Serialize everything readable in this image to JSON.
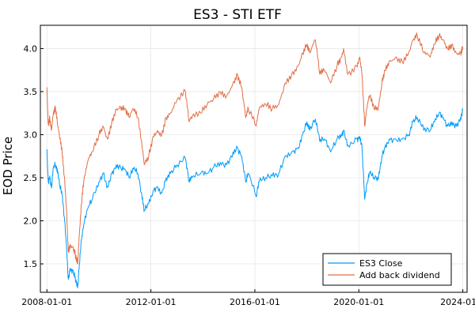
{
  "chart_data": {
    "type": "line",
    "title": "ES3 - STI ETF",
    "xlabel": "",
    "ylabel": "EOD Price",
    "x_ticks": [
      "2008-01-01",
      "2012-01-01",
      "2016-01-01",
      "2020-01-01",
      "2024-01-0"
    ],
    "y_ticks": [
      "1.5",
      "2.0",
      "2.5",
      "3.0",
      "3.5",
      "4.0"
    ],
    "xlim": [
      "2007-10-01",
      "2024-03-01"
    ],
    "ylim": [
      1.17,
      4.27
    ],
    "grid": true,
    "legend_position": "bottom-right",
    "series": [
      {
        "name": "ES3 Close",
        "color": "#009af9",
        "points": [
          [
            "2008-01-01",
            2.83
          ],
          [
            "2008-01-20",
            2.45
          ],
          [
            "2008-02-10",
            2.52
          ],
          [
            "2008-03-05",
            2.38
          ],
          [
            "2008-04-01",
            2.62
          ],
          [
            "2008-05-01",
            2.65
          ],
          [
            "2008-06-01",
            2.55
          ],
          [
            "2008-07-01",
            2.4
          ],
          [
            "2008-08-01",
            2.3
          ],
          [
            "2008-09-01",
            2.05
          ],
          [
            "2008-10-01",
            1.72
          ],
          [
            "2008-10-28",
            1.32
          ],
          [
            "2008-11-20",
            1.45
          ],
          [
            "2009-01-01",
            1.42
          ],
          [
            "2009-02-01",
            1.35
          ],
          [
            "2009-03-09",
            1.22
          ],
          [
            "2009-04-01",
            1.5
          ],
          [
            "2009-05-01",
            1.78
          ],
          [
            "2009-06-01",
            1.95
          ],
          [
            "2009-08-01",
            2.15
          ],
          [
            "2009-10-01",
            2.25
          ],
          [
            "2010-01-01",
            2.45
          ],
          [
            "2010-03-01",
            2.55
          ],
          [
            "2010-05-01",
            2.4
          ],
          [
            "2010-07-01",
            2.55
          ],
          [
            "2010-09-01",
            2.65
          ],
          [
            "2010-11-01",
            2.62
          ],
          [
            "2011-01-01",
            2.6
          ],
          [
            "2011-03-01",
            2.5
          ],
          [
            "2011-05-01",
            2.6
          ],
          [
            "2011-07-01",
            2.55
          ],
          [
            "2011-09-01",
            2.25
          ],
          [
            "2011-10-01",
            2.12
          ],
          [
            "2011-12-01",
            2.2
          ],
          [
            "2012-02-01",
            2.35
          ],
          [
            "2012-04-01",
            2.4
          ],
          [
            "2012-06-01",
            2.32
          ],
          [
            "2012-08-01",
            2.5
          ],
          [
            "2012-10-01",
            2.55
          ],
          [
            "2013-01-01",
            2.65
          ],
          [
            "2013-05-01",
            2.72
          ],
          [
            "2013-06-20",
            2.45
          ],
          [
            "2013-08-01",
            2.5
          ],
          [
            "2013-12-01",
            2.55
          ],
          [
            "2014-03-01",
            2.55
          ],
          [
            "2014-06-01",
            2.62
          ],
          [
            "2014-09-01",
            2.68
          ],
          [
            "2014-12-01",
            2.65
          ],
          [
            "2015-03-01",
            2.8
          ],
          [
            "2015-05-01",
            2.85
          ],
          [
            "2015-07-01",
            2.75
          ],
          [
            "2015-08-25",
            2.45
          ],
          [
            "2015-10-01",
            2.55
          ],
          [
            "2016-01-20",
            2.28
          ],
          [
            "2016-03-01",
            2.45
          ],
          [
            "2016-06-01",
            2.5
          ],
          [
            "2016-09-01",
            2.52
          ],
          [
            "2016-12-01",
            2.55
          ],
          [
            "2017-03-01",
            2.75
          ],
          [
            "2017-06-01",
            2.8
          ],
          [
            "2017-09-01",
            2.85
          ],
          [
            "2017-11-01",
            3.0
          ],
          [
            "2018-01-01",
            3.15
          ],
          [
            "2018-02-10",
            3.05
          ],
          [
            "2018-05-01",
            3.18
          ],
          [
            "2018-07-01",
            2.92
          ],
          [
            "2018-09-01",
            2.95
          ],
          [
            "2018-12-01",
            2.8
          ],
          [
            "2019-03-01",
            2.95
          ],
          [
            "2019-05-01",
            3.0
          ],
          [
            "2019-06-01",
            3.05
          ],
          [
            "2019-08-01",
            2.88
          ],
          [
            "2019-12-01",
            2.95
          ],
          [
            "2020-01-15",
            2.98
          ],
          [
            "2020-02-15",
            2.85
          ],
          [
            "2020-03-23",
            2.25
          ],
          [
            "2020-05-01",
            2.45
          ],
          [
            "2020-06-01",
            2.55
          ],
          [
            "2020-08-01",
            2.5
          ],
          [
            "2020-10-01",
            2.48
          ],
          [
            "2020-11-20",
            2.75
          ],
          [
            "2021-01-01",
            2.85
          ],
          [
            "2021-03-01",
            2.95
          ],
          [
            "2021-06-01",
            2.95
          ],
          [
            "2021-09-01",
            2.95
          ],
          [
            "2021-12-01",
            3.0
          ],
          [
            "2022-02-01",
            3.15
          ],
          [
            "2022-04-01",
            3.2
          ],
          [
            "2022-07-01",
            3.05
          ],
          [
            "2022-10-01",
            3.05
          ],
          [
            "2022-12-01",
            3.15
          ],
          [
            "2023-02-01",
            3.25
          ],
          [
            "2023-04-01",
            3.2
          ],
          [
            "2023-06-01",
            3.1
          ],
          [
            "2023-08-01",
            3.15
          ],
          [
            "2023-10-01",
            3.1
          ],
          [
            "2023-12-01",
            3.2
          ],
          [
            "2024-01-01",
            3.28
          ]
        ]
      },
      {
        "name": "Add back dividend",
        "color": "#e26f46",
        "points": [
          [
            "2008-01-01",
            3.55
          ],
          [
            "2008-01-20",
            3.12
          ],
          [
            "2008-02-10",
            3.2
          ],
          [
            "2008-03-05",
            3.05
          ],
          [
            "2008-04-01",
            3.25
          ],
          [
            "2008-05-01",
            3.3
          ],
          [
            "2008-06-01",
            3.1
          ],
          [
            "2008-07-01",
            2.95
          ],
          [
            "2008-08-01",
            2.8
          ],
          [
            "2008-09-01",
            2.52
          ],
          [
            "2008-10-01",
            2.15
          ],
          [
            "2008-10-28",
            1.65
          ],
          [
            "2008-11-20",
            1.72
          ],
          [
            "2009-01-01",
            1.7
          ],
          [
            "2009-02-01",
            1.62
          ],
          [
            "2009-03-09",
            1.5
          ],
          [
            "2009-04-01",
            1.85
          ],
          [
            "2009-05-01",
            2.2
          ],
          [
            "2009-06-01",
            2.45
          ],
          [
            "2009-08-01",
            2.7
          ],
          [
            "2009-10-01",
            2.8
          ],
          [
            "2010-01-01",
            3.0
          ],
          [
            "2010-03-01",
            3.1
          ],
          [
            "2010-05-01",
            2.95
          ],
          [
            "2010-07-01",
            3.15
          ],
          [
            "2010-09-01",
            3.3
          ],
          [
            "2010-11-01",
            3.32
          ],
          [
            "2011-01-01",
            3.3
          ],
          [
            "2011-03-01",
            3.2
          ],
          [
            "2011-05-01",
            3.3
          ],
          [
            "2011-07-01",
            3.2
          ],
          [
            "2011-09-01",
            2.85
          ],
          [
            "2011-10-01",
            2.65
          ],
          [
            "2011-12-01",
            2.75
          ],
          [
            "2012-02-01",
            2.98
          ],
          [
            "2012-04-01",
            3.05
          ],
          [
            "2012-06-01",
            3.0
          ],
          [
            "2012-08-01",
            3.2
          ],
          [
            "2012-10-01",
            3.25
          ],
          [
            "2013-01-01",
            3.4
          ],
          [
            "2013-05-01",
            3.5
          ],
          [
            "2013-06-20",
            3.15
          ],
          [
            "2013-08-01",
            3.2
          ],
          [
            "2013-12-01",
            3.25
          ],
          [
            "2014-03-01",
            3.35
          ],
          [
            "2014-06-01",
            3.42
          ],
          [
            "2014-09-01",
            3.5
          ],
          [
            "2014-12-01",
            3.45
          ],
          [
            "2015-03-01",
            3.6
          ],
          [
            "2015-05-01",
            3.7
          ],
          [
            "2015-07-01",
            3.55
          ],
          [
            "2015-08-25",
            3.2
          ],
          [
            "2015-10-01",
            3.3
          ],
          [
            "2016-01-20",
            3.1
          ],
          [
            "2016-03-01",
            3.3
          ],
          [
            "2016-06-01",
            3.35
          ],
          [
            "2016-09-01",
            3.3
          ],
          [
            "2016-12-01",
            3.35
          ],
          [
            "2017-03-01",
            3.6
          ],
          [
            "2017-06-01",
            3.7
          ],
          [
            "2017-09-01",
            3.8
          ],
          [
            "2017-11-01",
            3.95
          ],
          [
            "2018-01-01",
            4.05
          ],
          [
            "2018-02-10",
            3.95
          ],
          [
            "2018-05-01",
            4.1
          ],
          [
            "2018-07-01",
            3.7
          ],
          [
            "2018-09-01",
            3.75
          ],
          [
            "2018-12-01",
            3.6
          ],
          [
            "2019-03-01",
            3.8
          ],
          [
            "2019-05-01",
            3.9
          ],
          [
            "2019-06-01",
            4.0
          ],
          [
            "2019-08-01",
            3.7
          ],
          [
            "2019-12-01",
            3.8
          ],
          [
            "2020-01-15",
            3.9
          ],
          [
            "2020-02-15",
            3.7
          ],
          [
            "2020-03-23",
            3.1
          ],
          [
            "2020-05-01",
            3.35
          ],
          [
            "2020-06-01",
            3.45
          ],
          [
            "2020-08-01",
            3.3
          ],
          [
            "2020-10-01",
            3.3
          ],
          [
            "2020-11-20",
            3.6
          ],
          [
            "2021-01-01",
            3.75
          ],
          [
            "2021-03-01",
            3.85
          ],
          [
            "2021-06-01",
            3.9
          ],
          [
            "2021-09-01",
            3.85
          ],
          [
            "2021-12-01",
            3.95
          ],
          [
            "2022-02-01",
            4.1
          ],
          [
            "2022-04-01",
            4.15
          ],
          [
            "2022-07-01",
            3.95
          ],
          [
            "2022-10-01",
            3.9
          ],
          [
            "2022-12-01",
            4.05
          ],
          [
            "2023-02-01",
            4.15
          ],
          [
            "2023-04-01",
            4.1
          ],
          [
            "2023-06-01",
            4.0
          ],
          [
            "2023-08-01",
            4.05
          ],
          [
            "2023-10-01",
            3.95
          ],
          [
            "2023-12-01",
            3.95
          ],
          [
            "2024-01-01",
            4.02
          ]
        ]
      }
    ]
  }
}
